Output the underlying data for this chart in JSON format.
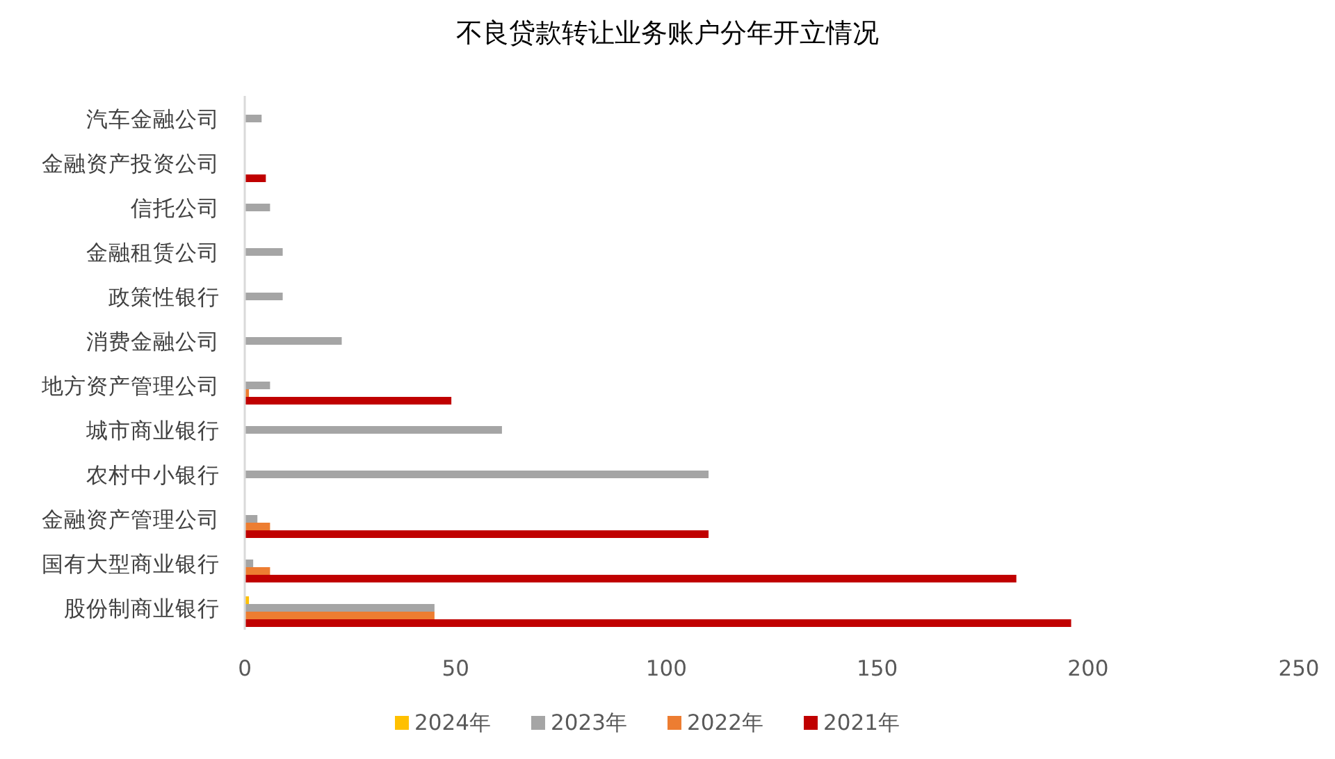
{
  "chart_data": {
    "type": "bar",
    "orientation": "horizontal",
    "title": "不良贷款转让业务账户分年开立情况",
    "categories": [
      "汽车金融公司",
      "金融资产投资公司",
      "信托公司",
      "金融租赁公司",
      "政策性银行",
      "消费金融公司",
      "地方资产管理公司",
      "城市商业银行",
      "农村中小银行",
      "金融资产管理公司",
      "国有大型商业银行",
      "股份制商业银行"
    ],
    "series": [
      {
        "name": "2024年",
        "color": "#ffc000",
        "values": [
          0,
          0,
          0,
          0,
          0,
          0,
          0,
          0,
          0,
          0,
          0,
          1
        ]
      },
      {
        "name": "2023年",
        "color": "#a5a5a5",
        "values": [
          4,
          0,
          6,
          9,
          9,
          23,
          6,
          61,
          110,
          3,
          2,
          45
        ]
      },
      {
        "name": "2022年",
        "color": "#ed7d31",
        "values": [
          0,
          0,
          0,
          0,
          0,
          0,
          1,
          0,
          0,
          6,
          6,
          45
        ]
      },
      {
        "name": "2021年",
        "color": "#c00000",
        "values": [
          0,
          5,
          0,
          0,
          0,
          0,
          49,
          0,
          0,
          110,
          183,
          196
        ]
      }
    ],
    "xlim": [
      0,
      250
    ],
    "xticks": [
      0,
      50,
      100,
      150,
      200,
      250
    ],
    "grid": false,
    "legend": "bottom"
  }
}
